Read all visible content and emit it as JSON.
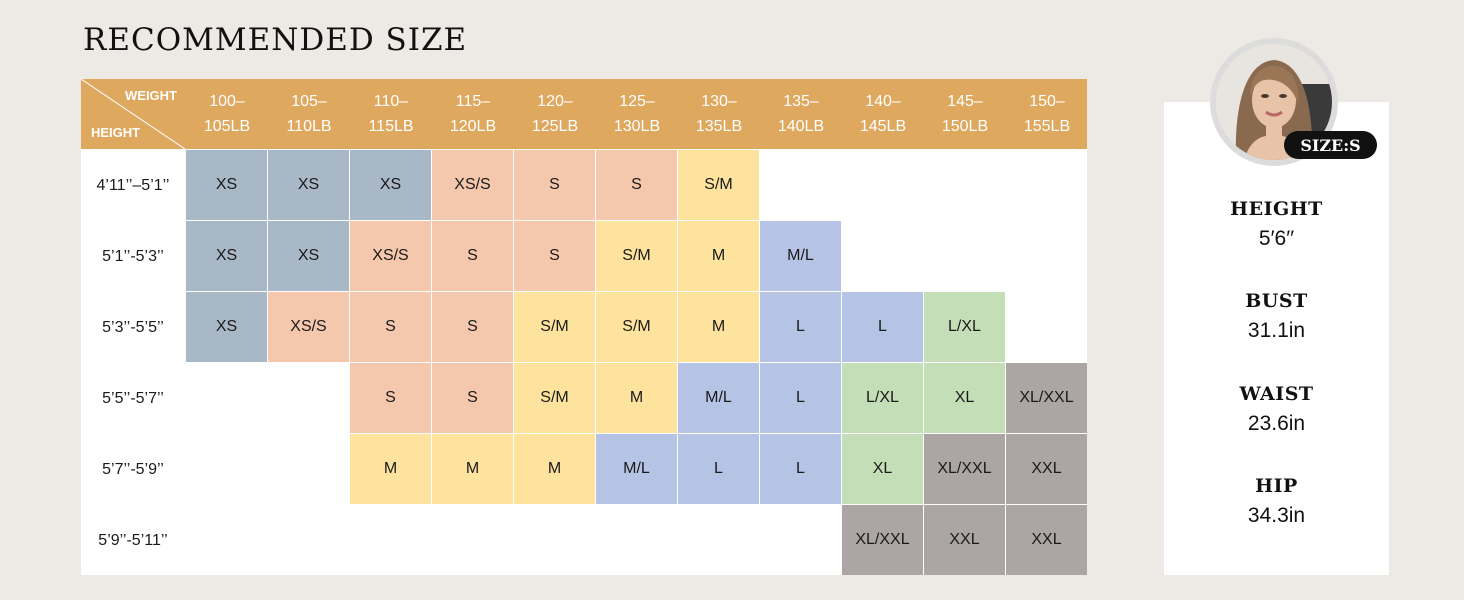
{
  "title": "RECOMMENDED SIZE",
  "table": {
    "corner_weight": "WEIGHT",
    "corner_height": "HEIGHT",
    "weights": [
      [
        "100–",
        "105LB"
      ],
      [
        "105–",
        "110LB"
      ],
      [
        "110–",
        "115LB"
      ],
      [
        "115–",
        "120LB"
      ],
      [
        "120–",
        "125LB"
      ],
      [
        "125–",
        "130LB"
      ],
      [
        "130–",
        "135LB"
      ],
      [
        "135–",
        "140LB"
      ],
      [
        "140–",
        "145LB"
      ],
      [
        "145–",
        "150LB"
      ],
      [
        "150–",
        "155LB"
      ]
    ],
    "heights": [
      "4’11’’–5’1’’",
      "5’1’’-5’3’’",
      "5’3’’-5’5’’",
      "5’5’’-5’7’’",
      "5’7’’-5’9’’",
      "5’9’’-5’11’’"
    ],
    "rows": [
      {
        "start": 0,
        "sizes": [
          "XS",
          "XS",
          "XS",
          "XS/S",
          "S",
          "S",
          "S/M"
        ]
      },
      {
        "start": 0,
        "sizes": [
          "XS",
          "XS",
          "XS/S",
          "S",
          "S",
          "S/M",
          "M",
          "M/L"
        ]
      },
      {
        "start": 0,
        "sizes": [
          "XS",
          "XS/S",
          "S",
          "S",
          "S/M",
          "S/M",
          "M",
          "L",
          "L",
          "L/XL"
        ]
      },
      {
        "start": 2,
        "sizes": [
          "S",
          "S",
          "S/M",
          "M",
          "M/L",
          "L",
          "L/XL",
          "XL",
          "XL/XXL"
        ]
      },
      {
        "start": 2,
        "sizes": [
          "M",
          "M",
          "M",
          "M/L",
          "L",
          "L",
          "XL",
          "XL/XXL",
          "XXL"
        ]
      },
      {
        "start": 8,
        "sizes": [
          "XL/XXL",
          "XXL",
          "XXL"
        ]
      }
    ]
  },
  "size_colors": {
    "XS": "#a9b8c6",
    "XS/S": "#f5c8ad",
    "S": "#f5c8ad",
    "S/M": "#fde39d",
    "M": "#fde39d",
    "M/L": "#b5c4e5",
    "L": "#b5c4e5",
    "L/XL": "#c4dfb7",
    "XL": "#c4dfb7",
    "XL/XXL": "#aba6a4",
    "XXL": "#aba6a4"
  },
  "model": {
    "badge": "SIZE:S",
    "measurements": [
      {
        "label": "HEIGHT",
        "value": "5′6′′"
      },
      {
        "label": "BUST",
        "value": "31.1in"
      },
      {
        "label": "WAIST",
        "value": "23.6in"
      },
      {
        "label": "HIP",
        "value": "34.3in"
      }
    ]
  }
}
